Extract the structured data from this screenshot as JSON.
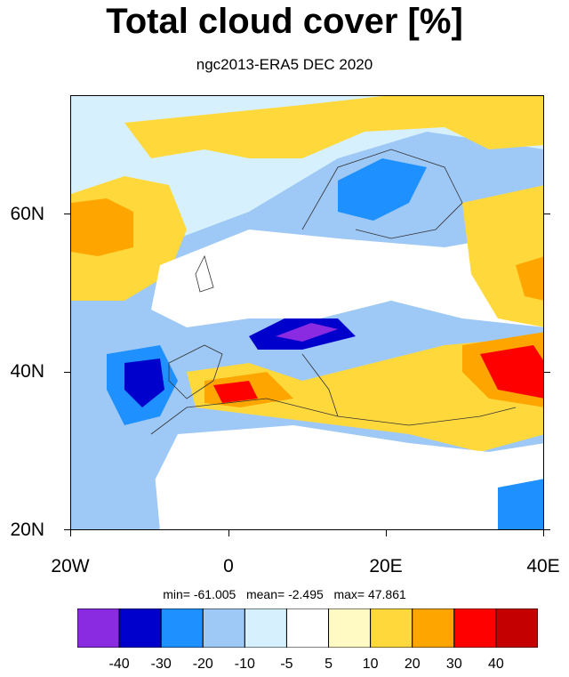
{
  "title": "Total cloud cover [%]",
  "subtitle": "ngc2013-ERA5 DEC 2020",
  "map": {
    "projection": "cylindrical equidistant",
    "lon_range": [
      -20,
      40
    ],
    "lat_range": [
      20,
      75
    ],
    "lat_labels": [
      "60N",
      "40N",
      "20N"
    ],
    "lon_labels": [
      "20W",
      "0",
      "20E",
      "40E"
    ],
    "field": "difference in total cloud cover"
  },
  "stats": {
    "min_label": "min=",
    "min": "-61.005",
    "mean_label": "mean=",
    "mean": "-2.495",
    "max_label": "max=",
    "max": "47.861"
  },
  "colorbar": {
    "colors": [
      "#8a2be2",
      "#0000cd",
      "#1e90ff",
      "#9ec8f5",
      "#d6f1fd",
      "#ffffff",
      "#fffac3",
      "#ffd93c",
      "#ffa500",
      "#ff0000",
      "#c40000"
    ],
    "labels": [
      "-40",
      "-30",
      "-20",
      "-10",
      "-5",
      "5",
      "10",
      "20",
      "30",
      "40"
    ]
  }
}
